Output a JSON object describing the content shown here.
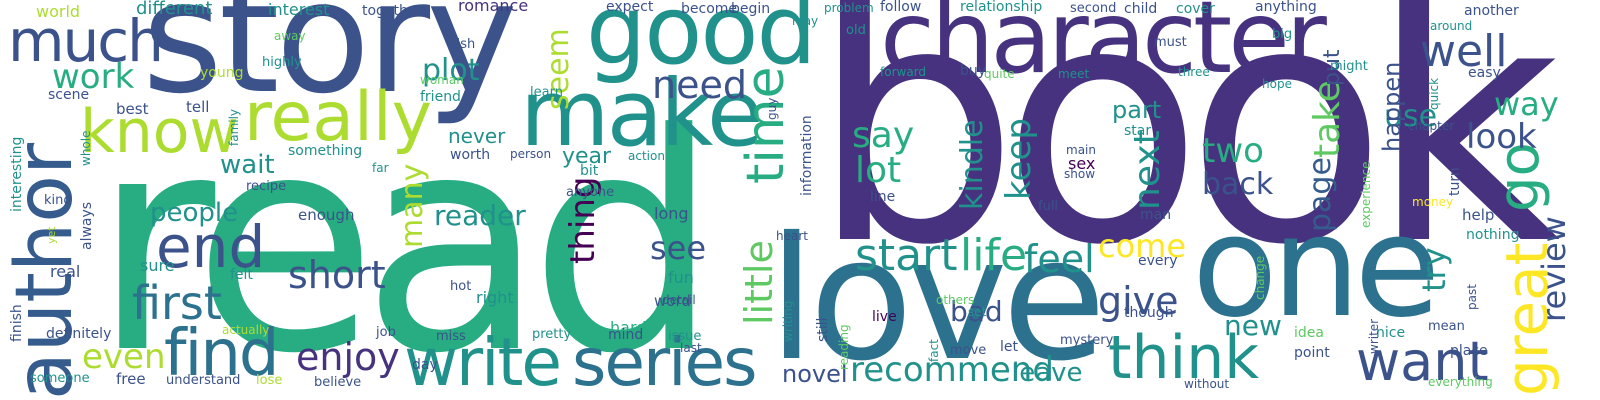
{
  "palette": {
    "dark_purple": "#46327e",
    "indigo": "#3b528b",
    "blue": "#365c8d",
    "steel_teal": "#2c728e",
    "teal": "#21918c",
    "green": "#27ad81",
    "light_green": "#5ec962",
    "lime": "#addc30",
    "yellow": "#fde725",
    "deep_purple": "#440154"
  },
  "words": [
    {
      "text": "book"
    },
    {
      "text": "read"
    },
    {
      "text": "story"
    },
    {
      "text": "character"
    },
    {
      "text": "love"
    },
    {
      "text": "one"
    },
    {
      "text": "good"
    },
    {
      "text": "make"
    },
    {
      "text": "author"
    },
    {
      "text": "know"
    },
    {
      "text": "really"
    },
    {
      "text": "much"
    },
    {
      "text": "end"
    },
    {
      "text": "find"
    },
    {
      "text": "first"
    },
    {
      "text": "write"
    },
    {
      "text": "series"
    },
    {
      "text": "think"
    },
    {
      "text": "want"
    },
    {
      "text": "great"
    },
    {
      "text": "go"
    },
    {
      "text": "well"
    },
    {
      "text": "time"
    },
    {
      "text": "little"
    },
    {
      "text": "start"
    },
    {
      "text": "life"
    },
    {
      "text": "feel"
    },
    {
      "text": "enjoy"
    },
    {
      "text": "work"
    },
    {
      "text": "even"
    },
    {
      "text": "short"
    },
    {
      "text": "recommend"
    },
    {
      "text": "give"
    },
    {
      "text": "need"
    },
    {
      "text": "say"
    },
    {
      "text": "lot"
    },
    {
      "text": "kindle"
    },
    {
      "text": "keep"
    },
    {
      "text": "two"
    },
    {
      "text": "back"
    },
    {
      "text": "page"
    },
    {
      "text": "take"
    },
    {
      "text": "next"
    },
    {
      "text": "part"
    },
    {
      "text": "look"
    },
    {
      "text": "way"
    },
    {
      "text": "use"
    },
    {
      "text": "review"
    },
    {
      "text": "try"
    },
    {
      "text": "come"
    },
    {
      "text": "new"
    },
    {
      "text": "leave"
    },
    {
      "text": "many"
    },
    {
      "text": "seem"
    },
    {
      "text": "plot"
    },
    {
      "text": "thing"
    },
    {
      "text": "see"
    },
    {
      "text": "reader"
    },
    {
      "text": "people"
    },
    {
      "text": "wait"
    },
    {
      "text": "bad"
    },
    {
      "text": "novel"
    },
    {
      "text": "year"
    },
    {
      "text": "never"
    },
    {
      "text": "put"
    },
    {
      "text": "happen"
    },
    {
      "text": "world"
    },
    {
      "text": "different"
    },
    {
      "text": "interest"
    },
    {
      "text": "together"
    },
    {
      "text": "romance"
    },
    {
      "text": "expect"
    },
    {
      "text": "become"
    },
    {
      "text": "begin"
    },
    {
      "text": "problem"
    },
    {
      "text": "follow"
    },
    {
      "text": "relationship"
    },
    {
      "text": "second"
    },
    {
      "text": "child"
    },
    {
      "text": "cover"
    },
    {
      "text": "anything"
    },
    {
      "text": "another"
    },
    {
      "text": "wish"
    },
    {
      "text": "young"
    },
    {
      "text": "away"
    },
    {
      "text": "highly"
    },
    {
      "text": "woman"
    },
    {
      "text": "friend"
    },
    {
      "text": "learn"
    },
    {
      "text": "scene"
    },
    {
      "text": "best"
    },
    {
      "text": "tell"
    },
    {
      "text": "family"
    },
    {
      "text": "interesting"
    },
    {
      "text": "something"
    },
    {
      "text": "worth"
    },
    {
      "text": "whole"
    },
    {
      "text": "far"
    },
    {
      "text": "recipe"
    },
    {
      "text": "always"
    },
    {
      "text": "kind"
    },
    {
      "text": "bit"
    },
    {
      "text": "anyone"
    },
    {
      "text": "person"
    },
    {
      "text": "action"
    },
    {
      "text": "enough"
    },
    {
      "text": "long"
    },
    {
      "text": "fun"
    },
    {
      "text": "detail"
    },
    {
      "text": "hot"
    },
    {
      "text": "right"
    },
    {
      "text": "word"
    },
    {
      "text": "last"
    },
    {
      "text": "real"
    },
    {
      "text": "sure"
    },
    {
      "text": "felt"
    },
    {
      "text": "yet"
    },
    {
      "text": "finish"
    },
    {
      "text": "definitely"
    },
    {
      "text": "actually"
    },
    {
      "text": "job"
    },
    {
      "text": "day"
    },
    {
      "text": "miss"
    },
    {
      "text": "pretty"
    },
    {
      "text": "hard"
    },
    {
      "text": "mind"
    },
    {
      "text": "issue"
    },
    {
      "text": "someone"
    },
    {
      "text": "free"
    },
    {
      "text": "understand"
    },
    {
      "text": "lose"
    },
    {
      "text": "believe"
    },
    {
      "text": "may"
    },
    {
      "text": "guy"
    },
    {
      "text": "old"
    },
    {
      "text": "information"
    },
    {
      "text": "buy"
    },
    {
      "text": "forward"
    },
    {
      "text": "quite"
    },
    {
      "text": "meet"
    },
    {
      "text": "three"
    },
    {
      "text": "must"
    },
    {
      "text": "big"
    },
    {
      "text": "might"
    },
    {
      "text": "hope"
    },
    {
      "text": "around"
    },
    {
      "text": "easy"
    },
    {
      "text": "quick"
    },
    {
      "text": "main"
    },
    {
      "text": "star"
    },
    {
      "text": "chapter"
    },
    {
      "text": "show"
    },
    {
      "text": "sex"
    },
    {
      "text": "line"
    },
    {
      "text": "full"
    },
    {
      "text": "experience"
    },
    {
      "text": "money"
    },
    {
      "text": "turn"
    },
    {
      "text": "help"
    },
    {
      "text": "nothing"
    },
    {
      "text": "man"
    },
    {
      "text": "heart"
    },
    {
      "text": "every"
    },
    {
      "text": "though"
    },
    {
      "text": "others"
    },
    {
      "text": "set"
    },
    {
      "text": "change"
    },
    {
      "text": "mean"
    },
    {
      "text": "idea"
    },
    {
      "text": "point"
    },
    {
      "text": "nice"
    },
    {
      "text": "past"
    },
    {
      "text": "place"
    },
    {
      "text": "writer"
    },
    {
      "text": "writing"
    },
    {
      "text": "still"
    },
    {
      "text": "live"
    },
    {
      "text": "reading"
    },
    {
      "text": "fact"
    },
    {
      "text": "move"
    },
    {
      "text": "let"
    },
    {
      "text": "mystery"
    },
    {
      "text": "without"
    },
    {
      "text": "everything"
    }
  ]
}
